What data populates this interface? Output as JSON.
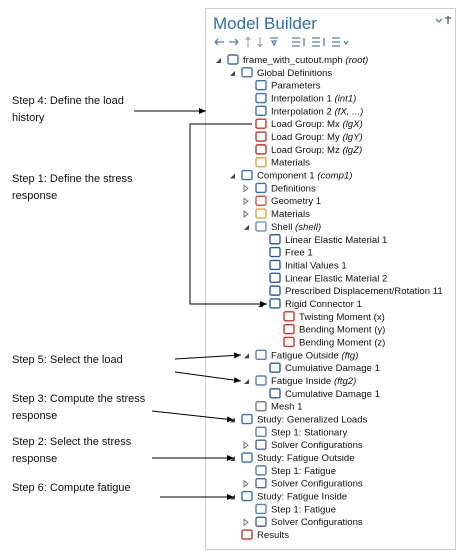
{
  "panel": {
    "title": "Model Builder"
  },
  "tree": [
    {
      "label": "frame_with_cutout.mph",
      "tag": "(root)"
    },
    {
      "label": "Global Definitions"
    },
    {
      "label": "Parameters"
    },
    {
      "label": "Interpolation 1",
      "tag": "(int1)"
    },
    {
      "label": "Interpolation 2",
      "tag": "(fX, ...)"
    },
    {
      "label": "Load Group: Mx",
      "tag": "(lgX)"
    },
    {
      "label": "Load Group: My",
      "tag": "(lgY)"
    },
    {
      "label": "Load Group: Mz",
      "tag": "(lgZ)"
    },
    {
      "label": "Materials"
    },
    {
      "label": "Component 1",
      "tag": "(comp1)"
    },
    {
      "label": "Definitions"
    },
    {
      "label": "Geometry 1"
    },
    {
      "label": "Materials"
    },
    {
      "label": "Shell",
      "tag": "(shell)"
    },
    {
      "label": "Linear Elastic Material 1"
    },
    {
      "label": "Free 1"
    },
    {
      "label": "Initial Values 1"
    },
    {
      "label": "Linear Elastic Material 2"
    },
    {
      "label": "Prescribed Displacement/Rotation 11"
    },
    {
      "label": "Rigid Connector 1"
    },
    {
      "label": "Twisting Moment (x)"
    },
    {
      "label": "Bending Moment (y)"
    },
    {
      "label": "Bending Moment (z)"
    },
    {
      "label": "Fatigue Outside",
      "tag": "(ftg)"
    },
    {
      "label": "Cumulative Damage 1"
    },
    {
      "label": "Fatigue Inside",
      "tag": "(ftg2)"
    },
    {
      "label": "Cumulative Damage 1"
    },
    {
      "label": "Mesh 1"
    },
    {
      "label": "Study: Generalized Loads"
    },
    {
      "label": "Step 1: Stationary"
    },
    {
      "label": "Solver Configurations"
    },
    {
      "label": "Study: Fatigue Outside"
    },
    {
      "label": "Step 1: Fatigue"
    },
    {
      "label": "Solver Configurations"
    },
    {
      "label": "Study: Fatigue Inside"
    },
    {
      "label": "Step 1: Fatigue"
    },
    {
      "label": "Solver Configurations"
    },
    {
      "label": "Results"
    }
  ],
  "callouts": [
    {
      "lines": [
        "Step 4: Define the load",
        "history"
      ]
    },
    {
      "lines": [
        "Step 1: Define the stress",
        "response"
      ]
    },
    {
      "lines": [
        "Step 5: Select the load"
      ]
    },
    {
      "lines": [
        "Step 3: Compute the stress",
        "response"
      ]
    },
    {
      "lines": [
        "Step 2: Select the stress",
        "response"
      ]
    },
    {
      "lines": [
        "Step 6: Compute fatigue"
      ]
    }
  ]
}
